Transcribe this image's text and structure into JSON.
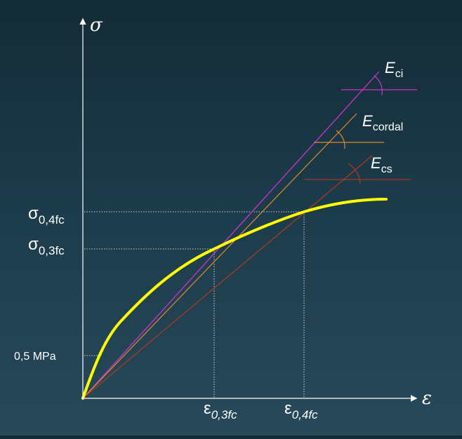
{
  "diagram": {
    "y_axis_symbol": "σ",
    "x_axis_symbol": "ε",
    "y_labels": [
      {
        "main": "σ",
        "sub": "0,4fc"
      },
      {
        "main": "σ",
        "sub": "0,3fc"
      },
      {
        "main": "0,5 MPa",
        "sub": ""
      }
    ],
    "x_labels": [
      {
        "main": "ε",
        "sub": "0,3fc"
      },
      {
        "main": "ε",
        "sub": "0,4fc"
      }
    ],
    "moduli": [
      {
        "main": "E",
        "sub": "ci"
      },
      {
        "main": "E",
        "sub": "cordal"
      },
      {
        "main": "E",
        "sub": "cs"
      }
    ]
  },
  "colors": {
    "background_top": "#132b36",
    "background_bottom": "#27495a",
    "axes": "#ffffff",
    "curve": "#ffff00",
    "tangent_line": "#cc33cc",
    "chord_line": "#e08a2a",
    "secant_line": "#a83a22",
    "guide_lines": "#ffffff"
  }
}
